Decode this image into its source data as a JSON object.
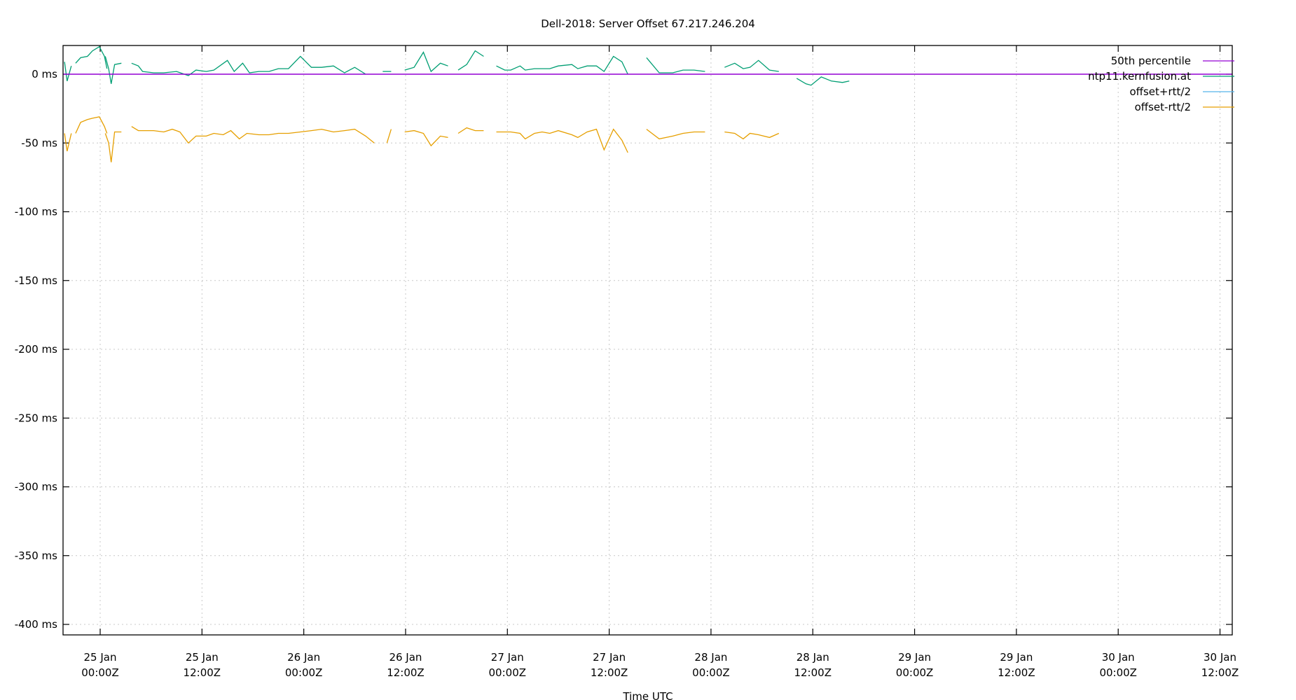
{
  "chart_data": {
    "type": "line",
    "title": "Dell-2018: Server Offset 67.217.246.204",
    "xlabel": "Time UTC",
    "ylabel": "",
    "x_unit": "hours since 25 Jan 00:00Z",
    "xlim": [
      -4.4,
      133.4
    ],
    "ylim": [
      -410,
      21
    ],
    "grid": true,
    "legend_position": "top-right",
    "y_ticks": [
      {
        "value": 0,
        "label": "0 ms"
      },
      {
        "value": -50,
        "label": "-50 ms"
      },
      {
        "value": -100,
        "label": "-100 ms"
      },
      {
        "value": -150,
        "label": "-150 ms"
      },
      {
        "value": -200,
        "label": "-200 ms"
      },
      {
        "value": -250,
        "label": "-250 ms"
      },
      {
        "value": -300,
        "label": "-300 ms"
      },
      {
        "value": -350,
        "label": "-350 ms"
      },
      {
        "value": -400,
        "label": "-400 ms"
      }
    ],
    "x_ticks": [
      {
        "value": 0,
        "line1": "25 Jan",
        "line2": "00:00Z"
      },
      {
        "value": 12,
        "line1": "25 Jan",
        "line2": "12:00Z"
      },
      {
        "value": 24,
        "line1": "26 Jan",
        "line2": "00:00Z"
      },
      {
        "value": 36,
        "line1": "26 Jan",
        "line2": "12:00Z"
      },
      {
        "value": 48,
        "line1": "27 Jan",
        "line2": "00:00Z"
      },
      {
        "value": 60,
        "line1": "27 Jan",
        "line2": "12:00Z"
      },
      {
        "value": 72,
        "line1": "28 Jan",
        "line2": "00:00Z"
      },
      {
        "value": 84,
        "line1": "28 Jan",
        "line2": "12:00Z"
      },
      {
        "value": 96,
        "line1": "29 Jan",
        "line2": "00:00Z"
      },
      {
        "value": 108,
        "line1": "29 Jan",
        "line2": "12:00Z"
      },
      {
        "value": 120,
        "line1": "30 Jan",
        "line2": "00:00Z"
      },
      {
        "value": 132,
        "line1": "30 Jan",
        "line2": "12:00Z"
      }
    ],
    "series": [
      {
        "name": "50th percentile",
        "color": "#9400d3",
        "segments": [
          [
            [
              -4.4,
              0
            ],
            [
              133.4,
              0
            ]
          ]
        ]
      },
      {
        "name": "ntp11.kernfusion.at",
        "color": "#009e73",
        "segments": [
          [
            [
              -4.2,
              9
            ],
            [
              -3.9,
              -5
            ],
            [
              -3.4,
              6
            ]
          ],
          [
            [
              -2.9,
              8
            ],
            [
              -2.3,
              12
            ],
            [
              -1.5,
              13
            ],
            [
              -0.9,
              17
            ],
            [
              -0.1,
              20
            ],
            [
              0.5,
              13
            ],
            [
              0.8,
              4
            ]
          ],
          [
            [
              0.6,
              13
            ],
            [
              1.0,
              4
            ],
            [
              1.3,
              -7
            ],
            [
              1.7,
              7
            ],
            [
              2.5,
              8
            ]
          ],
          [
            [
              3.7,
              8
            ],
            [
              4.5,
              6
            ],
            [
              5.0,
              2
            ],
            [
              6.3,
              1
            ],
            [
              7.5,
              1
            ],
            [
              9.0,
              2
            ],
            [
              10.4,
              -1
            ],
            [
              11.3,
              3
            ],
            [
              12.5,
              2
            ],
            [
              13.4,
              3
            ],
            [
              15.0,
              10
            ],
            [
              15.8,
              2
            ],
            [
              16.8,
              8
            ],
            [
              17.6,
              1
            ],
            [
              18.7,
              2
            ],
            [
              19.9,
              2
            ],
            [
              21.0,
              4
            ],
            [
              22.2,
              4
            ],
            [
              23.6,
              13
            ],
            [
              24.9,
              5
            ],
            [
              26.1,
              5
            ],
            [
              27.5,
              6
            ],
            [
              28.8,
              1
            ],
            [
              30.0,
              5
            ],
            [
              31.3,
              0
            ]
          ],
          [
            [
              33.3,
              2
            ],
            [
              34.3,
              2
            ]
          ],
          [
            [
              35.9,
              3
            ],
            [
              37.0,
              5
            ],
            [
              38.1,
              16
            ],
            [
              39.0,
              2
            ],
            [
              40.1,
              8
            ],
            [
              41.0,
              6
            ]
          ],
          [
            [
              42.2,
              3
            ],
            [
              43.2,
              7
            ],
            [
              44.2,
              17
            ],
            [
              45.2,
              13
            ]
          ],
          [
            [
              46.7,
              6
            ],
            [
              47.7,
              3
            ],
            [
              48.4,
              3
            ],
            [
              49.5,
              6
            ],
            [
              50.1,
              3
            ],
            [
              51.2,
              4
            ],
            [
              52.1,
              4
            ],
            [
              53.0,
              4
            ],
            [
              54.0,
              6
            ],
            [
              55.6,
              7
            ],
            [
              56.3,
              4
            ],
            [
              57.4,
              6
            ],
            [
              58.5,
              6
            ],
            [
              59.4,
              2
            ],
            [
              60.5,
              13
            ],
            [
              61.5,
              9
            ],
            [
              62.2,
              0
            ]
          ],
          [
            [
              64.4,
              12
            ],
            [
              65.9,
              1
            ],
            [
              67.5,
              1
            ],
            [
              68.7,
              3
            ],
            [
              70.0,
              3
            ],
            [
              71.3,
              2
            ]
          ],
          [
            [
              73.6,
              5
            ],
            [
              74.8,
              8
            ],
            [
              75.8,
              4
            ],
            [
              76.6,
              5
            ],
            [
              77.6,
              10
            ],
            [
              78.9,
              3
            ],
            [
              80.0,
              2
            ]
          ],
          [
            [
              82.1,
              -3
            ],
            [
              83.2,
              -7
            ],
            [
              83.8,
              -8
            ],
            [
              85.0,
              -2
            ],
            [
              86.2,
              -5
            ],
            [
              87.5,
              -6
            ],
            [
              88.3,
              -5
            ]
          ]
        ]
      },
      {
        "name": "offset+rtt/2",
        "color": "#56b4e9",
        "segments": []
      },
      {
        "name": "offset-rtt/2",
        "color": "#e69f00",
        "segments": [
          [
            [
              -4.2,
              -43
            ],
            [
              -3.9,
              -56
            ],
            [
              -3.4,
              -43
            ]
          ],
          [
            [
              -2.9,
              -43
            ],
            [
              -2.3,
              -35
            ],
            [
              -1.5,
              -33
            ],
            [
              -0.9,
              -32
            ],
            [
              -0.1,
              -31
            ],
            [
              0.5,
              -38
            ],
            [
              0.8,
              -43
            ]
          ],
          [
            [
              0.6,
              -43
            ],
            [
              1.0,
              -50
            ],
            [
              1.3,
              -64
            ],
            [
              1.7,
              -42
            ],
            [
              2.5,
              -42
            ]
          ],
          [
            [
              3.7,
              -38
            ],
            [
              4.5,
              -41
            ],
            [
              5.0,
              -41
            ],
            [
              6.3,
              -41
            ],
            [
              7.5,
              -42
            ],
            [
              8.5,
              -40
            ],
            [
              9.4,
              -42
            ],
            [
              10.4,
              -50
            ],
            [
              11.3,
              -45
            ],
            [
              12.5,
              -45
            ],
            [
              13.4,
              -43
            ],
            [
              14.5,
              -44
            ],
            [
              15.4,
              -41
            ],
            [
              16.4,
              -47
            ],
            [
              17.3,
              -43
            ],
            [
              18.7,
              -44
            ],
            [
              19.9,
              -44
            ],
            [
              21.0,
              -43
            ],
            [
              22.2,
              -43
            ],
            [
              23.6,
              -42
            ],
            [
              24.9,
              -41
            ],
            [
              26.1,
              -40
            ],
            [
              27.5,
              -42
            ],
            [
              28.8,
              -41
            ],
            [
              30.0,
              -40
            ],
            [
              31.3,
              -45
            ],
            [
              32.3,
              -50
            ]
          ],
          [
            [
              33.8,
              -50
            ],
            [
              34.3,
              -40
            ]
          ],
          [
            [
              35.9,
              -42
            ],
            [
              37.0,
              -41
            ],
            [
              38.1,
              -43
            ],
            [
              39.0,
              -52
            ],
            [
              40.1,
              -45
            ],
            [
              41.0,
              -46
            ]
          ],
          [
            [
              42.2,
              -43
            ],
            [
              43.2,
              -39
            ],
            [
              44.2,
              -41
            ],
            [
              45.2,
              -41
            ]
          ],
          [
            [
              46.7,
              -42
            ],
            [
              47.7,
              -42
            ],
            [
              48.4,
              -42
            ],
            [
              49.5,
              -43
            ],
            [
              50.1,
              -47
            ],
            [
              51.2,
              -43
            ],
            [
              52.1,
              -42
            ],
            [
              53.0,
              -43
            ],
            [
              54.0,
              -41
            ],
            [
              55.6,
              -44
            ],
            [
              56.3,
              -46
            ],
            [
              57.4,
              -42
            ],
            [
              58.5,
              -40
            ],
            [
              59.4,
              -55
            ],
            [
              60.5,
              -40
            ],
            [
              61.5,
              -48
            ],
            [
              62.2,
              -57
            ]
          ],
          [
            [
              64.4,
              -40
            ],
            [
              65.9,
              -47
            ],
            [
              67.5,
              -45
            ],
            [
              68.7,
              -43
            ],
            [
              70.0,
              -42
            ],
            [
              71.3,
              -42
            ]
          ],
          [
            [
              73.6,
              -42
            ],
            [
              74.8,
              -43
            ],
            [
              75.8,
              -47
            ],
            [
              76.6,
              -43
            ],
            [
              77.6,
              -44
            ],
            [
              78.9,
              -46
            ],
            [
              80.0,
              -43
            ]
          ]
        ]
      }
    ]
  },
  "legend": {
    "items": [
      {
        "label": "50th percentile",
        "color": "#9400d3"
      },
      {
        "label": "ntp11.kernfusion.at",
        "color": "#009e73"
      },
      {
        "label": "offset+rtt/2",
        "color": "#56b4e9"
      },
      {
        "label": "offset-rtt/2",
        "color": "#e69f00"
      }
    ]
  }
}
